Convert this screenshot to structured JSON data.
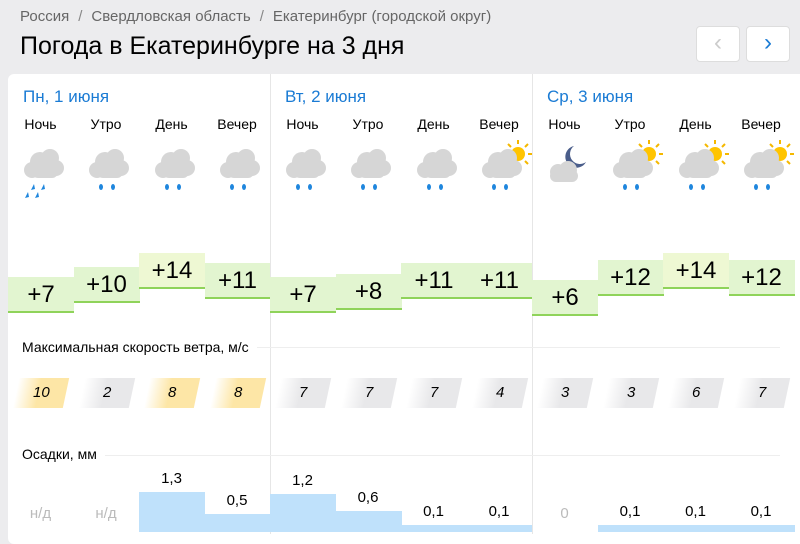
{
  "breadcrumbs": [
    "Россия",
    "Свердловская область",
    "Екатеринбург (городской округ)"
  ],
  "title": "Погода в Екатеринбурге на 3 дня",
  "nav": {
    "prev": "‹",
    "next": "›"
  },
  "wind_label": "Максимальная скорость ветра, м/с",
  "precip_label": "Осадки, мм",
  "colors": {
    "accent": "#1a7bd4",
    "temp_fill": "#e2f5d0",
    "wind_strong": "#fde6a6",
    "precip": "#bfe1fb"
  },
  "days": [
    {
      "title": "Пн, 1 июня",
      "slots": [
        {
          "label": "Ночь",
          "icon": "heavy-rain-cloud-icon",
          "temp": "+7",
          "t": 7,
          "wind": "10",
          "strong": true,
          "precip": "н/д",
          "p": null
        },
        {
          "label": "Утро",
          "icon": "rain-cloud-icon",
          "temp": "+10",
          "t": 10,
          "wind": "2",
          "strong": false,
          "precip": "н/д",
          "p": null
        },
        {
          "label": "День",
          "icon": "rain-cloud-icon",
          "temp": "+14",
          "t": 14,
          "wind": "8",
          "strong": true,
          "precip": "1,3",
          "p": 1.3
        },
        {
          "label": "Вечер",
          "icon": "rain-cloud-icon",
          "temp": "+11",
          "t": 11,
          "wind": "8",
          "strong": true,
          "precip": "0,5",
          "p": 0.5
        }
      ]
    },
    {
      "title": "Вт, 2 июня",
      "slots": [
        {
          "label": "Ночь",
          "icon": "rain-cloud-icon",
          "temp": "+7",
          "t": 7,
          "wind": "7",
          "strong": false,
          "precip": "1,2",
          "p": 1.2
        },
        {
          "label": "Утро",
          "icon": "rain-cloud-icon",
          "temp": "+8",
          "t": 8,
          "wind": "7",
          "strong": false,
          "precip": "0,6",
          "p": 0.6
        },
        {
          "label": "День",
          "icon": "rain-cloud-icon",
          "temp": "+11",
          "t": 11,
          "wind": "7",
          "strong": false,
          "precip": "0,1",
          "p": 0.1
        },
        {
          "label": "Вечер",
          "icon": "sun-cloud-rain-icon",
          "temp": "+11",
          "t": 11,
          "wind": "4",
          "strong": false,
          "precip": "0,1",
          "p": 0.1
        }
      ]
    },
    {
      "title": "Ср, 3 июня",
      "slots": [
        {
          "label": "Ночь",
          "icon": "moon-cloud-icon",
          "temp": "+6",
          "t": 6,
          "wind": "3",
          "strong": false,
          "precip": "0",
          "p": 0
        },
        {
          "label": "Утро",
          "icon": "sun-cloud-rain-icon",
          "temp": "+12",
          "t": 12,
          "wind": "3",
          "strong": false,
          "precip": "0,1",
          "p": 0.1
        },
        {
          "label": "День",
          "icon": "sun-cloud-rain-icon",
          "temp": "+14",
          "t": 14,
          "wind": "6",
          "strong": false,
          "precip": "0,1",
          "p": 0.1
        },
        {
          "label": "Вечер",
          "icon": "sun-cloud-rain-icon",
          "temp": "+12",
          "t": 12,
          "wind": "7",
          "strong": false,
          "precip": "0,1",
          "p": 0.1
        }
      ]
    }
  ]
}
